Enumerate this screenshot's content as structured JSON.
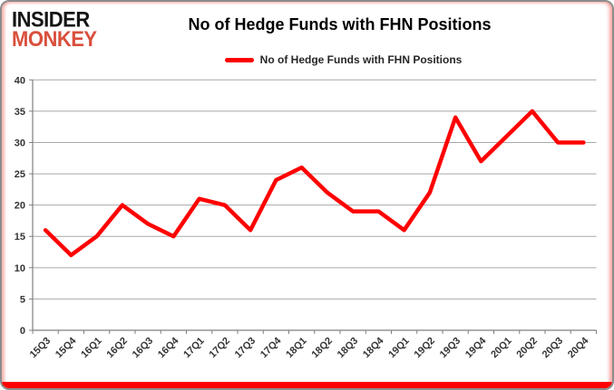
{
  "brand": {
    "line1": "INSIDER",
    "line2": "MONKEY"
  },
  "header": {
    "title": "No of Hedge Funds with FHN Positions"
  },
  "legend": {
    "label": "No of Hedge Funds with FHN Positions",
    "color": "#fe0000"
  },
  "colors": {
    "series_red": "#fe0000",
    "gridline": "#a8a8a8",
    "axis": "#7f7f7f",
    "tick_text": "#333333",
    "logo_red": "#d94f3c",
    "frame_border": "#8c8c8c"
  },
  "chart_data": {
    "type": "line",
    "title": "No of Hedge Funds with FHN Positions",
    "categories": [
      "15Q3",
      "15Q4",
      "16Q1",
      "16Q2",
      "16Q3",
      "16Q4",
      "17Q1",
      "17Q2",
      "17Q3",
      "17Q4",
      "18Q1",
      "18Q2",
      "18Q3",
      "18Q4",
      "19Q1",
      "19Q2",
      "19Q3",
      "19Q4",
      "20Q1",
      "20Q2",
      "20Q3",
      "20Q4"
    ],
    "series": [
      {
        "name": "No of Hedge Funds with FHN Positions",
        "color": "#fe0000",
        "values": [
          16,
          12,
          15,
          20,
          17,
          15,
          21,
          20,
          16,
          24,
          26,
          22,
          19,
          19,
          16,
          22,
          34,
          27,
          31,
          35,
          30,
          30
        ]
      }
    ],
    "xlabel": "",
    "ylabel": "",
    "ylim": [
      0,
      40
    ],
    "yticks": [
      0,
      5,
      10,
      15,
      20,
      25,
      30,
      35,
      40
    ],
    "grid": "horizontal",
    "legend_position": "top-center"
  }
}
